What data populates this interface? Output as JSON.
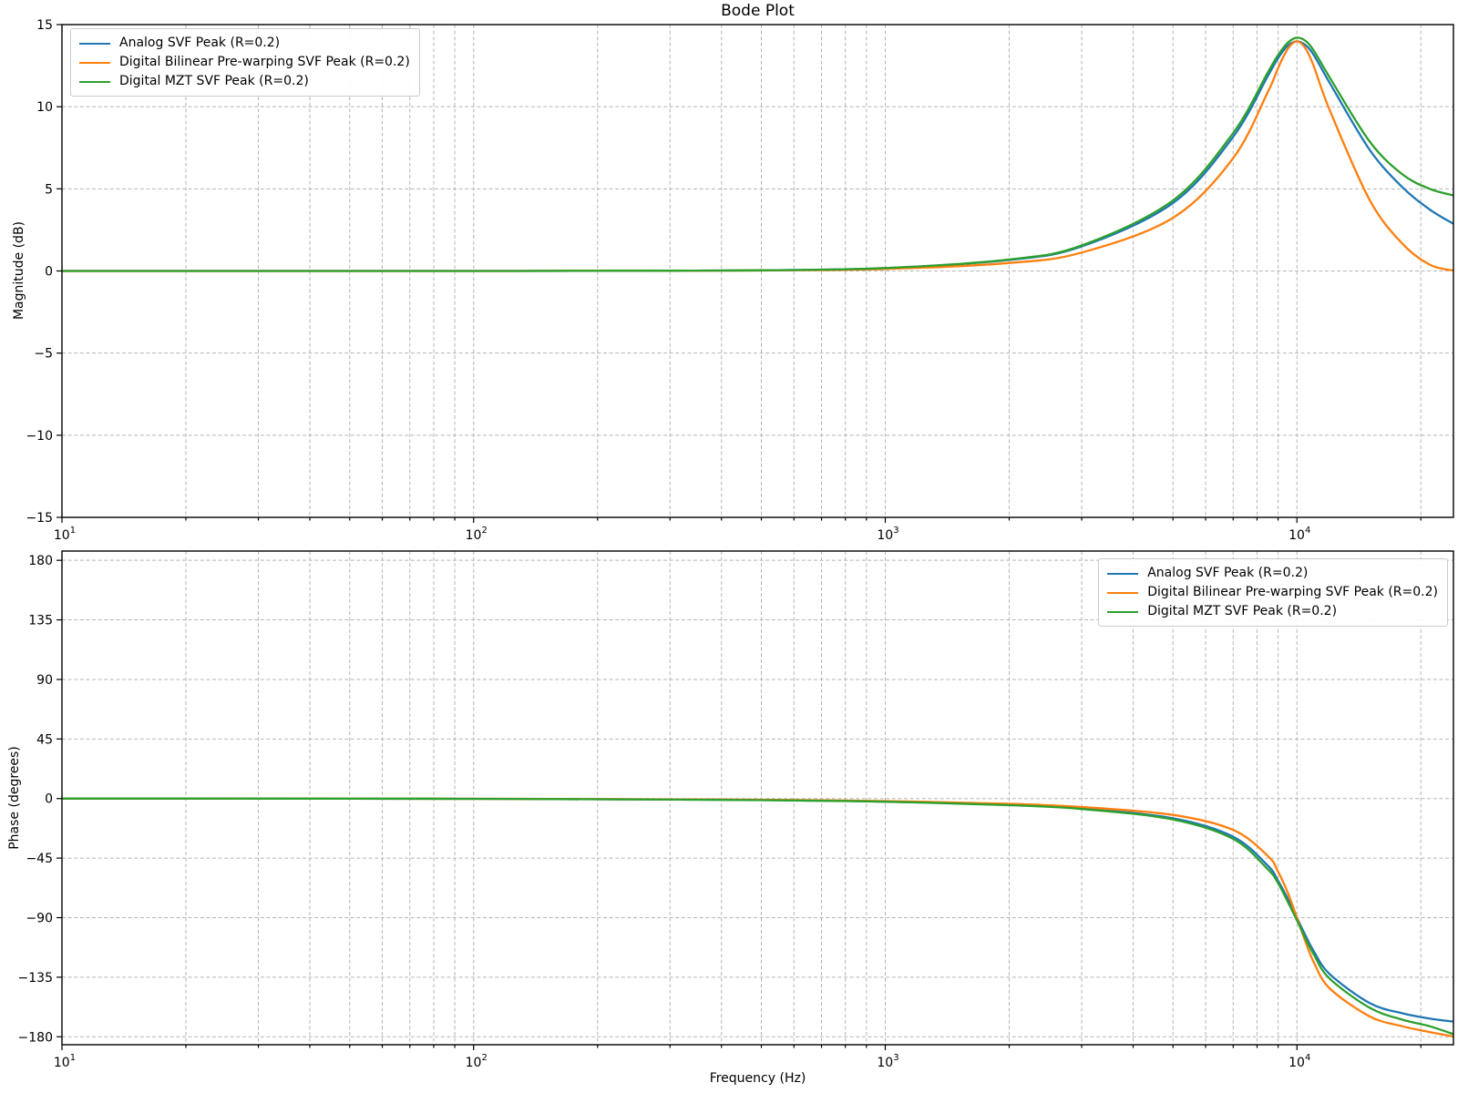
{
  "title": "Bode Plot",
  "colors": {
    "blue": "#1f77b4",
    "orange": "#ff7f0e",
    "green": "#2ca02c",
    "grid": "#b5b5b5",
    "spine": "#000000",
    "background": "#ffffff"
  },
  "legend": {
    "entries": [
      {
        "id": "analog",
        "label": "Analog SVF Peak (R=0.2)",
        "color": "#1f77b4"
      },
      {
        "id": "bilinear",
        "label": "Digital Bilinear Pre-warping SVF Peak (R=0.2)",
        "color": "#ff7f0e"
      },
      {
        "id": "mzt",
        "label": "Digital MZT SVF Peak (R=0.2)",
        "color": "#2ca02c"
      }
    ]
  },
  "chart_data": [
    {
      "name": "magnitude",
      "type": "line",
      "xscale": "log",
      "xlabel": "",
      "ylabel": "Magnitude (dB)",
      "xlim": [
        10,
        24000
      ],
      "ylim": [
        -15,
        15
      ],
      "xticks": [
        10,
        100,
        1000,
        10000
      ],
      "yticks": [
        -15,
        -10,
        -5,
        0,
        5,
        10,
        15
      ],
      "grid": "both-dashed",
      "legend_loc": "upper left",
      "x": [
        10,
        20,
        50,
        100,
        200,
        500,
        1000,
        2000,
        3000,
        5000,
        7000,
        8500,
        9000,
        9500,
        10000,
        10500,
        11000,
        12000,
        15000,
        18000,
        21000,
        24000
      ],
      "series": [
        {
          "id": "analog",
          "name": "Analog SVF Peak (R=0.2)",
          "color": "#1f77b4",
          "values": [
            0,
            0,
            0,
            0,
            0.01,
            0.04,
            0.17,
            0.67,
            1.49,
            4.14,
            8.17,
            11.88,
            12.96,
            13.72,
            13.98,
            13.74,
            13.13,
            11.47,
            7.4,
            5.12,
            3.75,
            2.87
          ]
        },
        {
          "id": "bilinear",
          "name": "Digital Bilinear Pre-warping SVF Peak (R=0.2)",
          "color": "#ff7f0e",
          "values": [
            0,
            0,
            0,
            0,
            0.01,
            0.03,
            0.12,
            0.49,
            1.12,
            3.24,
            6.87,
            10.91,
            12.36,
            13.52,
            13.98,
            13.53,
            12.44,
            9.82,
            4.35,
            1.68,
            0.39,
            0.02
          ]
        },
        {
          "id": "mzt",
          "name": "Digital MZT SVF Peak (R=0.2)",
          "color": "#2ca02c",
          "values": [
            0,
            0,
            0,
            0,
            0.01,
            0.04,
            0.18,
            0.7,
            1.55,
            4.3,
            8.4,
            12.1,
            13.15,
            13.9,
            14.2,
            14.0,
            13.4,
            11.8,
            7.9,
            5.9,
            5.0,
            4.6
          ]
        }
      ]
    },
    {
      "name": "phase",
      "type": "line",
      "xscale": "log",
      "xlabel": "Frequency (Hz)",
      "ylabel": "Phase (degrees)",
      "xlim": [
        10,
        24000
      ],
      "ylim": [
        -186,
        187
      ],
      "xticks": [
        10,
        100,
        1000,
        10000
      ],
      "yticks": [
        -180,
        -135,
        -90,
        -45,
        0,
        45,
        90,
        135,
        180
      ],
      "grid": "both-dashed",
      "legend_loc": "upper right",
      "x": [
        10,
        20,
        50,
        100,
        200,
        500,
        1000,
        2000,
        3000,
        5000,
        7000,
        8500,
        9000,
        9500,
        10000,
        10500,
        11000,
        12000,
        15000,
        18000,
        21000,
        24000
      ],
      "series": [
        {
          "id": "analog",
          "name": "Analog SVF Peak (R=0.2)",
          "color": "#1f77b4",
          "values": [
            0,
            0,
            -0.1,
            -0.2,
            -0.5,
            -1.1,
            -2.3,
            -4.8,
            -7.5,
            -14.9,
            -28.8,
            -50.8,
            -62.2,
            -75.6,
            -90,
            -103.7,
            -115.5,
            -132.5,
            -154.4,
            -162.2,
            -166.2,
            -168.6
          ]
        },
        {
          "id": "bilinear",
          "name": "Digital Bilinear Pre-warping SVF Peak (R=0.2)",
          "color": "#ff7f0e",
          "values": [
            0,
            0,
            -0.1,
            -0.2,
            -0.4,
            -0.9,
            -1.9,
            -4.0,
            -6.4,
            -12.4,
            -23.7,
            -43.4,
            -55.3,
            -71.1,
            -90,
            -108.6,
            -123.9,
            -143.3,
            -164.5,
            -172.0,
            -176.4,
            -179.8
          ]
        },
        {
          "id": "mzt",
          "name": "Digital MZT SVF Peak (R=0.2)",
          "color": "#2ca02c",
          "values": [
            0,
            0,
            -0.1,
            -0.2,
            -0.5,
            -1.2,
            -2.4,
            -5.0,
            -7.9,
            -15.8,
            -30.5,
            -53.5,
            -64,
            -78,
            -92,
            -106,
            -118,
            -136,
            -158,
            -167,
            -172,
            -178
          ]
        }
      ]
    }
  ]
}
